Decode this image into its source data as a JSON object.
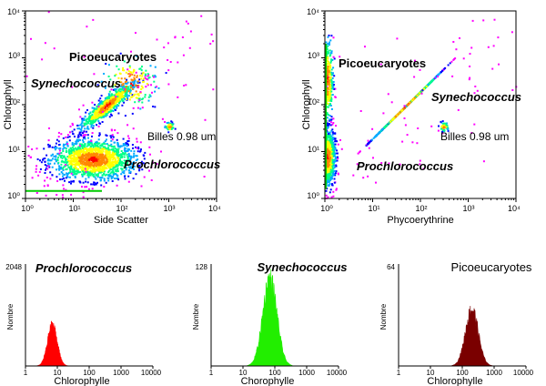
{
  "chart_data": [
    {
      "type": "scatter",
      "panel": "cytogram-side-scatter",
      "xlabel": "Side Scatter",
      "ylabel": "Chlorophyll",
      "xscale": "log",
      "yscale": "log",
      "xlim": [
        1,
        10000
      ],
      "ylim": [
        1,
        10000
      ],
      "xticks": [
        "10⁰",
        "10¹",
        "10²",
        "10³",
        "10⁴"
      ],
      "yticks": [
        "10⁰",
        "10¹",
        "10²",
        "10³",
        "10⁴"
      ],
      "populations": [
        {
          "name": "Prochlorococcus",
          "italic": true,
          "center": [
            25,
            7
          ],
          "spread": [
            0.45,
            0.22
          ],
          "count": 1500
        },
        {
          "name": "Synechococcus",
          "italic": true,
          "center": [
            50,
            100
          ],
          "spread": [
            0.3,
            0.22
          ],
          "count": 650
        },
        {
          "name": "Picoeucaryotes",
          "italic": false,
          "center": [
            150,
            300
          ],
          "spread": [
            0.3,
            0.3
          ],
          "count": 150
        },
        {
          "name": "Billes 0.98 um",
          "italic": false,
          "center": [
            1000,
            35
          ],
          "spread": [
            0.05,
            0.05
          ],
          "count": 50
        }
      ],
      "annotations": [
        "Picoeucaryotes",
        "Synechococcus",
        "Billes 0.98 um",
        "Prochlorococcus"
      ]
    },
    {
      "type": "scatter",
      "panel": "cytogram-phycoerythrine",
      "xlabel": "Phycoerythrine",
      "ylabel": "Chlorophyll",
      "xscale": "log",
      "yscale": "log",
      "xlim": [
        1,
        10000
      ],
      "ylim": [
        1,
        10000
      ],
      "xticks": [
        "10⁰",
        "10¹",
        "10²",
        "10³",
        "10⁴"
      ],
      "yticks": [
        "10⁰",
        "10¹",
        "10²",
        "10³",
        "10⁴"
      ],
      "populations": [
        {
          "name": "Prochlorococcus",
          "italic": true,
          "center": [
            1.1,
            8
          ],
          "spread": [
            0.08,
            0.3
          ],
          "count": 900
        },
        {
          "name": "Synechococcus",
          "italic": true,
          "center": [
            50,
            100
          ],
          "spread": [
            0.35,
            0.35
          ],
          "count": 800
        },
        {
          "name": "Picoeucaryotes",
          "italic": false,
          "center": [
            1.1,
            350
          ],
          "spread": [
            0.06,
            0.45
          ],
          "count": 350
        },
        {
          "name": "Billes 0.98 um",
          "italic": false,
          "center": [
            300,
            35
          ],
          "spread": [
            0.05,
            0.05
          ],
          "count": 40
        }
      ],
      "annotations": [
        "Picoeucaryotes",
        "Synechococcus",
        "Billes 0.98 um",
        "Prochlorococcus"
      ]
    },
    {
      "type": "histogram",
      "title": "Prochlorococcus",
      "title_italic": true,
      "xlabel": "Chlorophylle",
      "ylabel": "Nombre",
      "xscale": "log",
      "xlim": [
        1,
        10000
      ],
      "xticks": [
        "1",
        "10",
        "100",
        "1000",
        "10000"
      ],
      "ymax": "2048",
      "color": "#ff0000",
      "peak_x": 7,
      "peak_fraction": 0.4,
      "log_sd": 0.15
    },
    {
      "type": "histogram",
      "title": "Synechococcus",
      "title_italic": true,
      "xlabel": "Chorophylle",
      "ylabel": "Nombre",
      "xscale": "log",
      "xlim": [
        1,
        10000
      ],
      "xticks": [
        "1",
        "10",
        "100",
        "1000",
        "10000"
      ],
      "ymax": "128",
      "color": "#22ee00",
      "peak_x": 70,
      "peak_fraction": 0.85,
      "log_sd": 0.22
    },
    {
      "type": "histogram",
      "title": "Picoeucaryotes",
      "title_italic": false,
      "xlabel": "Chlorophylle",
      "ylabel": "Nombre",
      "xscale": "log",
      "xlim": [
        1,
        10000
      ],
      "xticks": [
        "1",
        "10",
        "100",
        "1000",
        "10000"
      ],
      "ymax": "64",
      "color": "#7a0000",
      "peak_x": 200,
      "peak_fraction": 0.55,
      "log_sd": 0.2
    }
  ]
}
